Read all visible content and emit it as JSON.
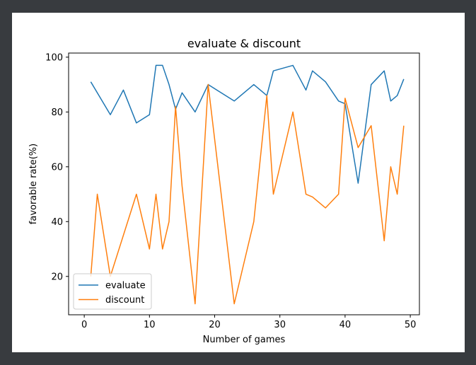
{
  "chart_data": {
    "type": "line",
    "title": "evaluate & discount",
    "xlabel": "Number of games",
    "ylabel": "favorable rate(%)",
    "xlim": [
      -2.4,
      51.4
    ],
    "ylim": [
      6.0,
      101.5
    ],
    "xticks": [
      0,
      10,
      20,
      30,
      40,
      50
    ],
    "yticks": [
      20,
      40,
      60,
      80,
      100
    ],
    "grid": false,
    "legend_position": "lower-left",
    "series": [
      {
        "name": "evaluate",
        "color": "#1f77b4",
        "x": [
          1,
          4,
          6,
          8,
          10,
          11,
          12,
          13,
          14,
          15,
          17,
          19,
          23,
          26,
          28,
          29,
          32,
          34,
          35,
          37,
          39,
          40,
          42,
          44,
          46,
          47,
          48,
          49
        ],
        "y": [
          91,
          79,
          88,
          76,
          79,
          97,
          97,
          90,
          81,
          87,
          80,
          90,
          84,
          90,
          86,
          95,
          97,
          88,
          95,
          91,
          84,
          83,
          54,
          90,
          95,
          84,
          86,
          92
        ]
      },
      {
        "name": "discount",
        "color": "#ff7f0e",
        "x": [
          1,
          2,
          4,
          8,
          10,
          11,
          12,
          13,
          14,
          15,
          17,
          19,
          23,
          26,
          28,
          29,
          32,
          34,
          35,
          37,
          39,
          40,
          42,
          44,
          46,
          47,
          48,
          49
        ],
        "y": [
          20,
          50,
          20,
          50,
          30,
          50,
          30,
          40,
          82,
          53,
          10,
          90,
          10,
          40,
          86,
          50,
          80,
          50,
          49,
          45,
          50,
          85,
          67,
          75,
          33,
          60,
          50,
          75
        ]
      }
    ]
  }
}
